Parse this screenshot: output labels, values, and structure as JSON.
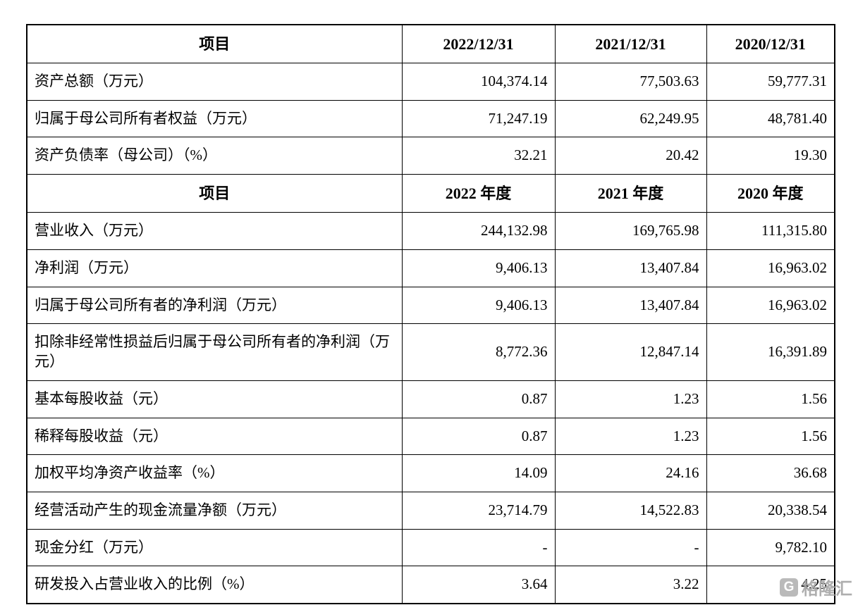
{
  "table": {
    "sections": [
      {
        "header": {
          "label": "项目",
          "cols": [
            "2022/12/31",
            "2021/12/31",
            "2020/12/31"
          ]
        },
        "rows": [
          {
            "label": "资产总额（万元）",
            "values": [
              "104,374.14",
              "77,503.63",
              "59,777.31"
            ]
          },
          {
            "label": "归属于母公司所有者权益（万元）",
            "values": [
              "71,247.19",
              "62,249.95",
              "48,781.40"
            ]
          },
          {
            "label": "资产负债率（母公司）（%）",
            "values": [
              "32.21",
              "20.42",
              "19.30"
            ]
          }
        ]
      },
      {
        "header": {
          "label": "项目",
          "cols": [
            "2022 年度",
            "2021 年度",
            "2020 年度"
          ]
        },
        "rows": [
          {
            "label": "营业收入（万元）",
            "values": [
              "244,132.98",
              "169,765.98",
              "111,315.80"
            ]
          },
          {
            "label": "净利润（万元）",
            "values": [
              "9,406.13",
              "13,407.84",
              "16,963.02"
            ]
          },
          {
            "label": "归属于母公司所有者的净利润（万元）",
            "values": [
              "9,406.13",
              "13,407.84",
              "16,963.02"
            ]
          },
          {
            "label": "扣除非经常性损益后归属于母公司所有者的净利润（万元）",
            "values": [
              "8,772.36",
              "12,847.14",
              "16,391.89"
            ]
          },
          {
            "label": "基本每股收益（元）",
            "values": [
              "0.87",
              "1.23",
              "1.56"
            ]
          },
          {
            "label": "稀释每股收益（元）",
            "values": [
              "0.87",
              "1.23",
              "1.56"
            ]
          },
          {
            "label": "加权平均净资产收益率（%）",
            "values": [
              "14.09",
              "24.16",
              "36.68"
            ]
          },
          {
            "label": "经营活动产生的现金流量净额（万元）",
            "values": [
              "23,714.79",
              "14,522.83",
              "20,338.54"
            ]
          },
          {
            "label": "现金分红（万元）",
            "values": [
              "-",
              "-",
              "9,782.10"
            ]
          },
          {
            "label": "研发投入占营业收入的比例（%）",
            "values": [
              "3.64",
              "3.22",
              "4.25"
            ]
          }
        ]
      }
    ]
  },
  "watermark": {
    "text": "格隆汇",
    "logo_letter": "G"
  },
  "colors": {
    "background": "#ffffff",
    "border": "#000000",
    "text": "#000000",
    "watermark": "#a6a6a6"
  }
}
